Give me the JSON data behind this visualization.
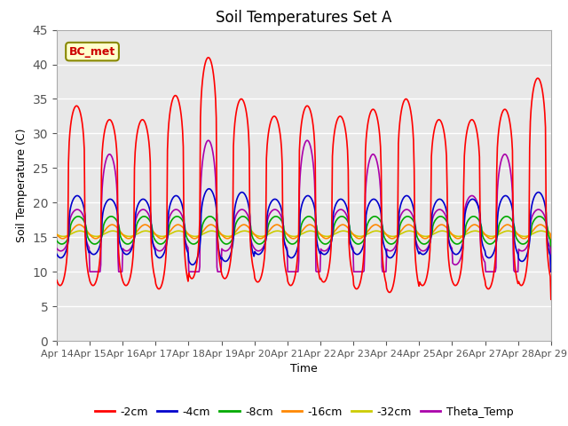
{
  "title": "Soil Temperatures Set A",
  "xlabel": "Time",
  "ylabel": "Soil Temperature (C)",
  "ylim": [
    0,
    45
  ],
  "yticks": [
    0,
    5,
    10,
    15,
    20,
    25,
    30,
    35,
    40,
    45
  ],
  "x_labels": [
    "Apr 14",
    "Apr 15",
    "Apr 16",
    "Apr 17",
    "Apr 18",
    "Apr 19",
    "Apr 20",
    "Apr 21",
    "Apr 22",
    "Apr 23",
    "Apr 24",
    "Apr 25",
    "Apr 26",
    "Apr 27",
    "Apr 28",
    "Apr 29"
  ],
  "annotation_text": "BC_met",
  "line_colors": {
    "-2cm": "#ff0000",
    "-4cm": "#0000cc",
    "-8cm": "#00aa00",
    "-16cm": "#ff8800",
    "-32cm": "#cccc00",
    "Theta_Temp": "#aa00aa"
  },
  "plot_bg_color": "#e8e8e8",
  "title_fontsize": 12,
  "axis_fontsize": 9
}
